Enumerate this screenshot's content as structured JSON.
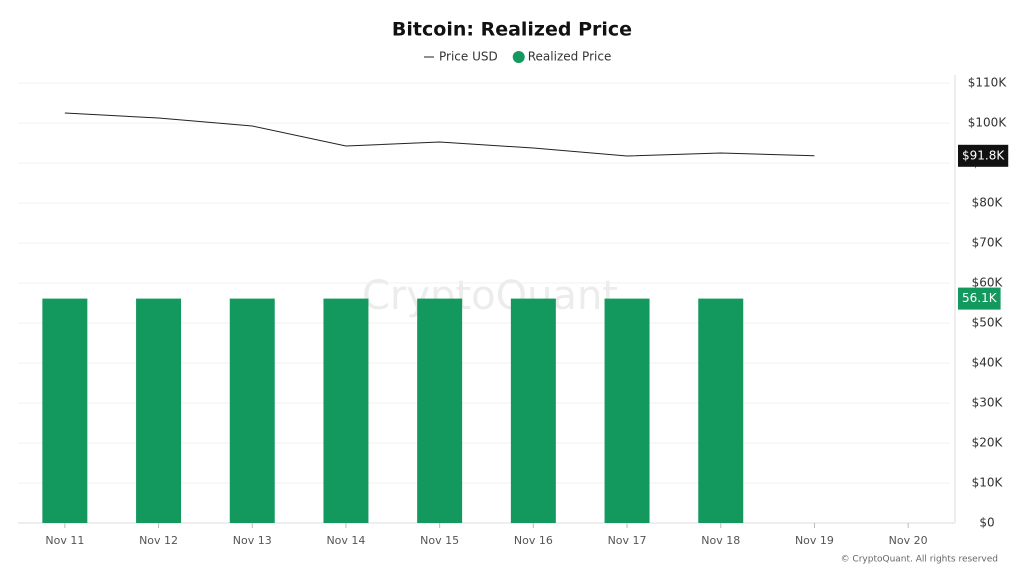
{
  "chart_data": {
    "type": "bar",
    "title": "Bitcoin: Realized Price",
    "categories": [
      "Nov 11",
      "Nov 12",
      "Nov 13",
      "Nov 14",
      "Nov 15",
      "Nov 16",
      "Nov 17",
      "Nov 18",
      "Nov 19",
      "Nov 20"
    ],
    "series": [
      {
        "name": "Price USD",
        "type": "line",
        "color": "#222222",
        "values": [
          102500,
          101250,
          99250,
          94250,
          95250,
          93750,
          91750,
          92500,
          91800,
          null
        ],
        "value_labels": [
          null,
          null,
          null,
          null,
          null,
          null,
          null,
          null,
          "$91.8K",
          null
        ]
      },
      {
        "name": "Realized Price",
        "type": "bar",
        "color": "#13985e",
        "values": [
          56100,
          56100,
          56100,
          56100,
          56100,
          56100,
          56100,
          56100,
          null,
          null
        ],
        "value_labels": [
          null,
          null,
          null,
          null,
          null,
          null,
          null,
          "56.1K",
          null,
          null
        ]
      }
    ],
    "ylim": [
      0,
      110000
    ],
    "yticks": [
      {
        "value": 0,
        "label": "$0"
      },
      {
        "value": 10000,
        "label": "$10K"
      },
      {
        "value": 20000,
        "label": "$20K"
      },
      {
        "value": 30000,
        "label": "$30K"
      },
      {
        "value": 40000,
        "label": "$40K"
      },
      {
        "value": 50000,
        "label": "$50K"
      },
      {
        "value": 60000,
        "label": "$60K"
      },
      {
        "value": 70000,
        "label": "$70K"
      },
      {
        "value": 80000,
        "label": "$80K"
      },
      {
        "value": 90000,
        "label": "$90K"
      },
      {
        "value": 100000,
        "label": "$100K"
      },
      {
        "value": 110000,
        "label": "$110K"
      }
    ],
    "grid": true,
    "watermark": "CryptoQuant",
    "credit": "© CryptoQuant. All rights reserved"
  }
}
